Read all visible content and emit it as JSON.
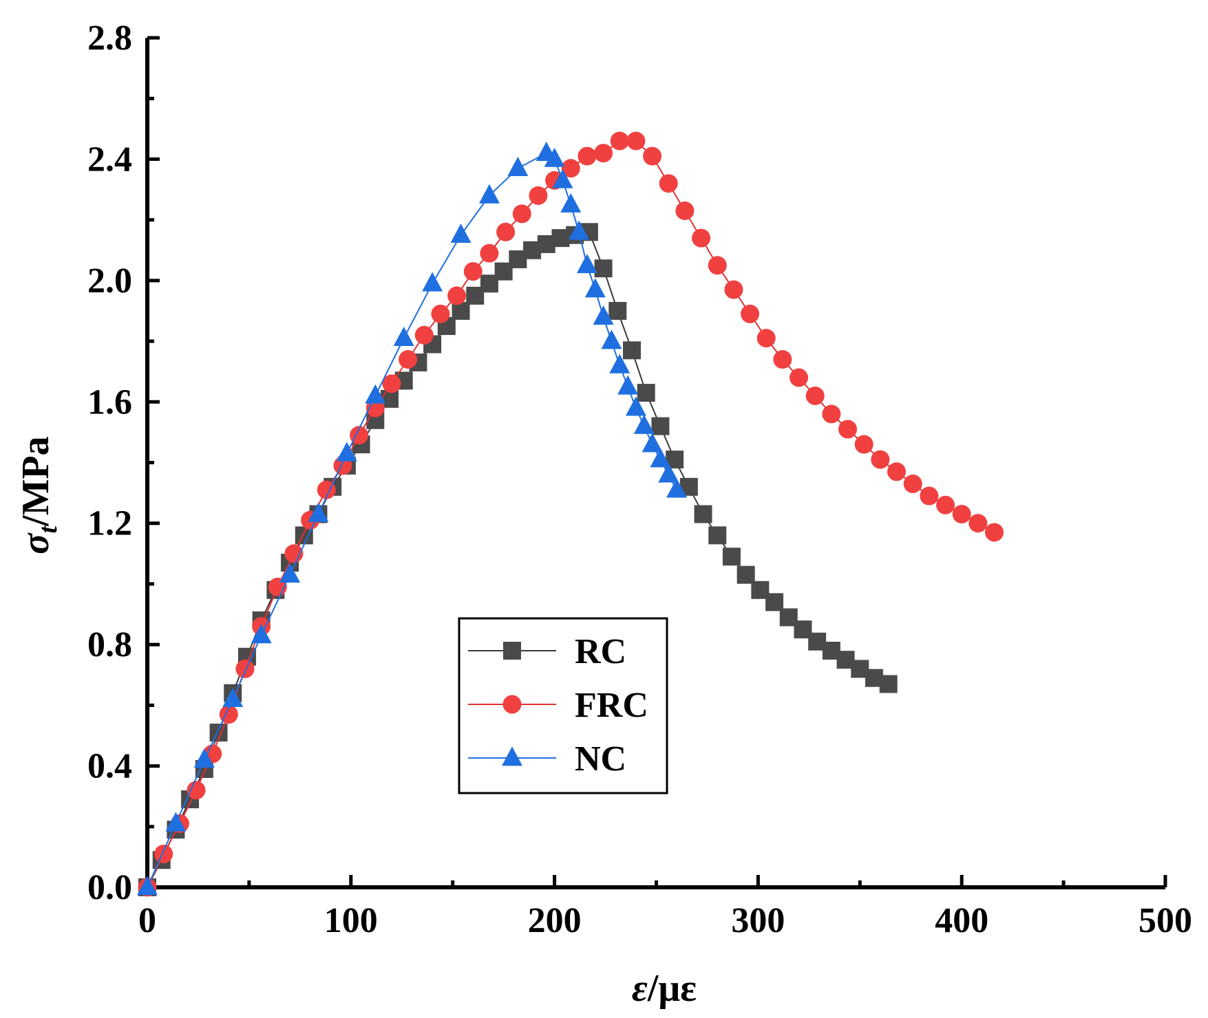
{
  "chart_data": {
    "type": "line",
    "xlabel": {
      "symbol": "ε",
      "unit": "/με"
    },
    "ylabel": {
      "symbol": "σ",
      "subscript": "t",
      "unit": "/MPa"
    },
    "xlim": [
      0,
      500
    ],
    "ylim": [
      0,
      2.8
    ],
    "xticks": [
      0,
      100,
      200,
      300,
      400,
      500
    ],
    "xtick_labels": [
      "0",
      "100",
      "200",
      "300",
      "400",
      "500"
    ],
    "yticks": [
      0,
      0.4,
      0.8,
      1.2,
      1.6,
      2.0,
      2.4,
      2.8
    ],
    "ytick_labels": [
      "0.0",
      "0.4",
      "0.8",
      "1.2",
      "1.6",
      "2.0",
      "2.4",
      "2.8"
    ],
    "legend_position": "lower-center",
    "series": [
      {
        "name": "RC",
        "marker": "square",
        "color": "#4a4a4a",
        "line_color": "#3a3a3a",
        "x": [
          0,
          7,
          14,
          21,
          28,
          35,
          42,
          49,
          56,
          63,
          70,
          77,
          84,
          91,
          98,
          105,
          112,
          119,
          126,
          133,
          140,
          147,
          154,
          161,
          168,
          175,
          182,
          189,
          196,
          203,
          210,
          217,
          224,
          231,
          238,
          245,
          252,
          259,
          266,
          273,
          280,
          287,
          294,
          301,
          308,
          315,
          322,
          329,
          336,
          343,
          350,
          357,
          364
        ],
        "y": [
          0,
          0.09,
          0.19,
          0.29,
          0.39,
          0.51,
          0.64,
          0.76,
          0.88,
          0.98,
          1.07,
          1.16,
          1.23,
          1.32,
          1.39,
          1.46,
          1.54,
          1.61,
          1.67,
          1.73,
          1.79,
          1.85,
          1.9,
          1.95,
          1.99,
          2.03,
          2.07,
          2.1,
          2.12,
          2.14,
          2.15,
          2.16,
          2.04,
          1.9,
          1.77,
          1.63,
          1.52,
          1.41,
          1.32,
          1.23,
          1.16,
          1.09,
          1.03,
          0.98,
          0.94,
          0.89,
          0.85,
          0.81,
          0.78,
          0.75,
          0.72,
          0.69,
          0.67
        ]
      },
      {
        "name": "FRC",
        "marker": "circle",
        "color": "#f04040",
        "line_color": "#e03030",
        "x": [
          0,
          8,
          16,
          24,
          32,
          40,
          48,
          56,
          64,
          72,
          80,
          88,
          96,
          104,
          112,
          120,
          128,
          136,
          144,
          152,
          160,
          168,
          176,
          184,
          192,
          200,
          208,
          216,
          224,
          232,
          240,
          248,
          256,
          264,
          272,
          280,
          288,
          296,
          304,
          312,
          320,
          328,
          336,
          344,
          352,
          360,
          368,
          376,
          384,
          392,
          400,
          408,
          416
        ],
        "y": [
          0,
          0.11,
          0.21,
          0.32,
          0.44,
          0.57,
          0.72,
          0.86,
          0.99,
          1.1,
          1.21,
          1.31,
          1.39,
          1.49,
          1.58,
          1.66,
          1.74,
          1.82,
          1.89,
          1.95,
          2.03,
          2.09,
          2.16,
          2.22,
          2.28,
          2.33,
          2.37,
          2.41,
          2.42,
          2.46,
          2.46,
          2.41,
          2.32,
          2.23,
          2.14,
          2.05,
          1.97,
          1.89,
          1.81,
          1.74,
          1.68,
          1.62,
          1.56,
          1.51,
          1.46,
          1.41,
          1.37,
          1.33,
          1.29,
          1.26,
          1.23,
          1.2,
          1.17
        ]
      },
      {
        "name": "NC",
        "marker": "triangle",
        "color": "#1f6fe0",
        "line_color": "#1f6fe0",
        "x": [
          0,
          14,
          28,
          42,
          56,
          70,
          84,
          98,
          112,
          126,
          140,
          154,
          168,
          182,
          196,
          200,
          204,
          208,
          212,
          216,
          220,
          224,
          228,
          232,
          236,
          240,
          244,
          248,
          252,
          256,
          260
        ],
        "y": [
          0,
          0.21,
          0.42,
          0.62,
          0.83,
          1.03,
          1.23,
          1.43,
          1.62,
          1.81,
          1.99,
          2.15,
          2.28,
          2.37,
          2.42,
          2.4,
          2.33,
          2.25,
          2.16,
          2.05,
          1.97,
          1.88,
          1.8,
          1.72,
          1.65,
          1.58,
          1.52,
          1.46,
          1.41,
          1.36,
          1.31
        ]
      }
    ]
  }
}
